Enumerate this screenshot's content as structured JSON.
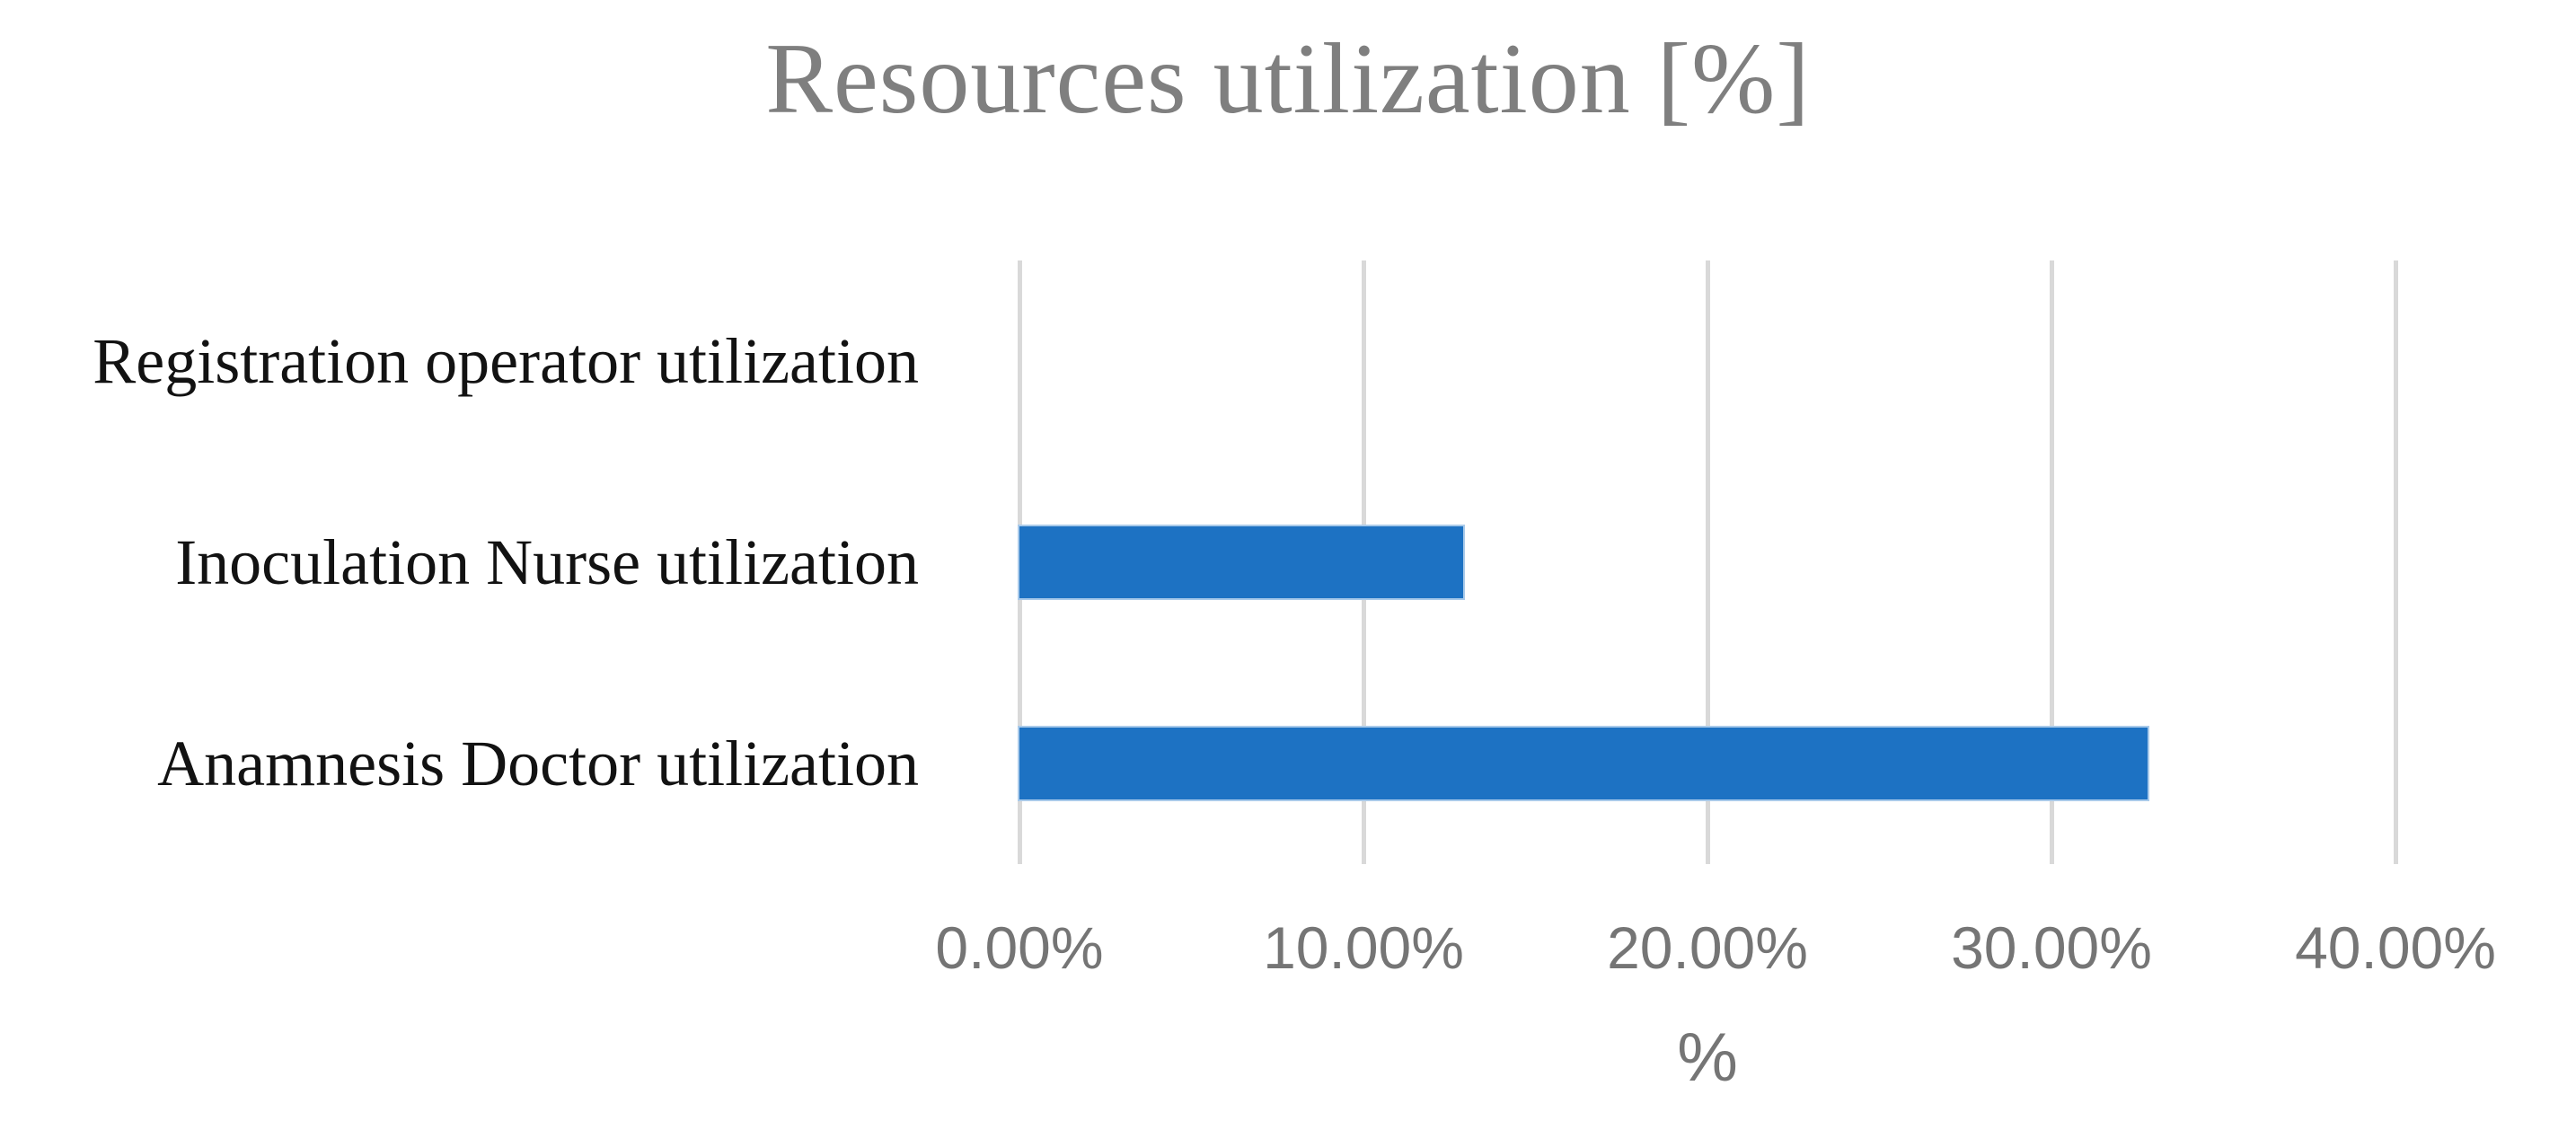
{
  "chart_data": {
    "type": "bar",
    "orientation": "horizontal",
    "title": "Resources utilization [%]",
    "xlabel": "%",
    "categories": [
      "Registration operator utilization",
      "Inoculation Nurse utilization",
      "Anamnesis Doctor utilization"
    ],
    "values": [
      0,
      12.9,
      32.8
    ],
    "xlim": [
      0,
      40
    ],
    "x_tick_values": [
      0,
      10,
      20,
      30,
      40
    ],
    "x_tick_labels": [
      "0.00%",
      "10.00%",
      "20.00%",
      "30.00%",
      "40.00%"
    ],
    "grid": "vertical-only",
    "legend": "none",
    "colors": {
      "bar": "#1D72C3",
      "bar_edge": "#A9CAEA",
      "gridline": "#D9D9D9",
      "title": "#7F7F7F",
      "tick": "#757575",
      "category_label": "#121212",
      "background": "#FFFFFF"
    }
  }
}
